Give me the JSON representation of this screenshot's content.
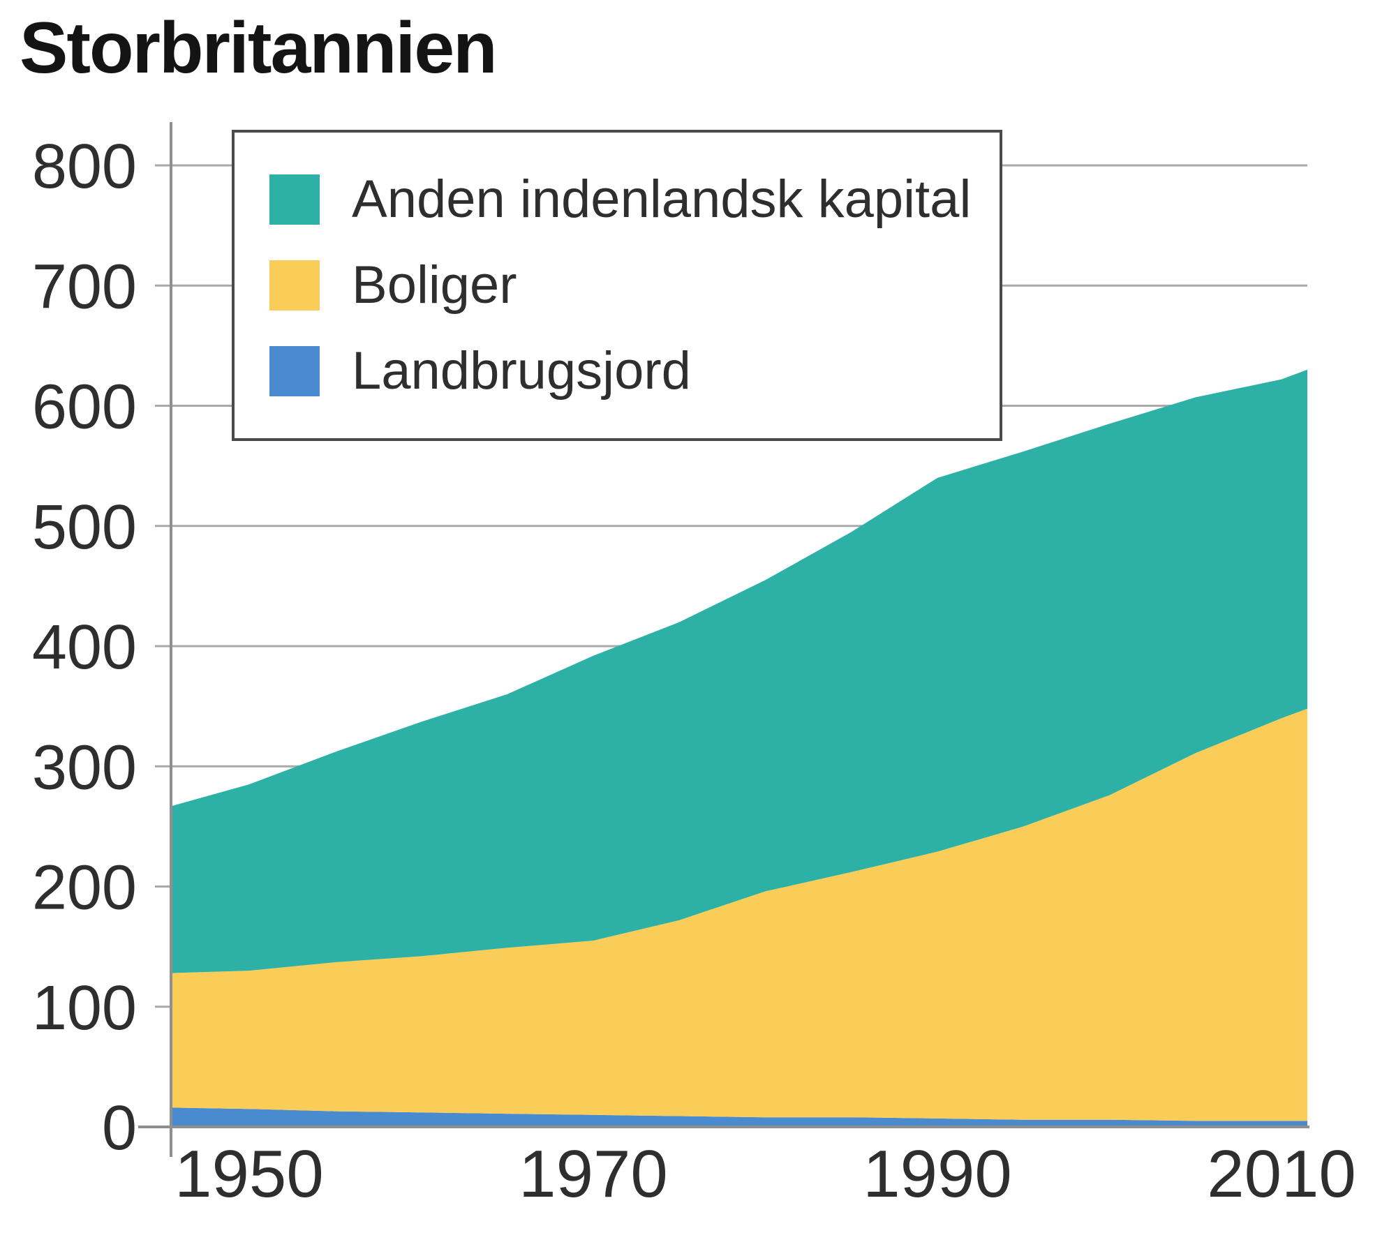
{
  "title": "Storbritannien",
  "chart_data": {
    "type": "area",
    "stacked": true,
    "title": "Storbritannien",
    "x": [
      1945.5,
      1950,
      1955,
      1960,
      1965,
      1970,
      1975,
      1980,
      1985,
      1990,
      1995,
      2000,
      2005,
      2010,
      2011.5
    ],
    "x_ticks": [
      1950,
      1970,
      1990,
      2010
    ],
    "ylim": [
      0,
      800
    ],
    "y_ticks": [
      0,
      100,
      200,
      300,
      400,
      500,
      600,
      700,
      800
    ],
    "grid": true,
    "legend_position": "top-left",
    "series": [
      {
        "name": "Landbrugsjord",
        "color": "#4A8BD0",
        "values": [
          16,
          15,
          13,
          12,
          11,
          10,
          9,
          8,
          8,
          7,
          6,
          6,
          5,
          5,
          5
        ]
      },
      {
        "name": "Boliger",
        "color": "#FACD59",
        "values": [
          112,
          115,
          124,
          130,
          138,
          145,
          163,
          188,
          204,
          222,
          244,
          270,
          306,
          335,
          343
        ]
      },
      {
        "name": "Anden indenlandsk kapital",
        "color": "#2DB1A7",
        "values": [
          139,
          155,
          175,
          195,
          211,
          237,
          248,
          259,
          283,
          311,
          312,
          309,
          296,
          282,
          282
        ]
      }
    ],
    "stacked_totals": [
      267,
      285,
      312,
      337,
      360,
      392,
      420,
      455,
      495,
      540,
      562,
      585,
      607,
      622,
      630
    ]
  },
  "legend": {
    "items": [
      {
        "label": "Anden indenlandsk kapital",
        "color": "#2DB1A7"
      },
      {
        "label": "Boliger",
        "color": "#FACD59"
      },
      {
        "label": "Landbrugsjord",
        "color": "#4A8BD0"
      }
    ]
  },
  "style_colors": {
    "grid": "#A9A9A9",
    "axis": "#8F8F8F",
    "tick_text": "#2e2e2e",
    "title_text": "#141414",
    "background": "#FFFFFF"
  }
}
